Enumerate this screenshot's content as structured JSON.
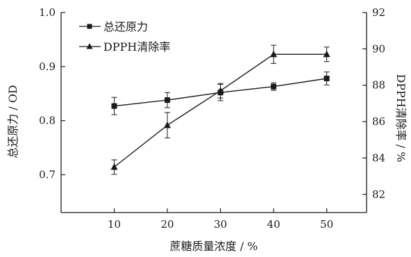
{
  "chart_data": {
    "type": "line",
    "title": "",
    "xlabel": "蔗糖质量浓度 / %",
    "ylabel_left": "总还原力 / OD",
    "ylabel_right": "DPPH清除率 / %",
    "x": [
      10,
      20,
      30,
      40,
      50
    ],
    "x_ticks": [
      "10",
      "20",
      "30",
      "40",
      "50"
    ],
    "xlim": [
      0,
      57.5
    ],
    "ylim_left": [
      0.63,
      1.0
    ],
    "ylim_right": [
      81.0,
      92.0
    ],
    "y_ticks_left": [
      "0.7",
      "0.8",
      "0.9",
      "1.0"
    ],
    "y_tick_values_left": [
      0.7,
      0.8,
      0.9,
      1.0
    ],
    "y_ticks_right": [
      "82",
      "84",
      "86",
      "88",
      "90",
      "92"
    ],
    "y_tick_values_right": [
      82,
      84,
      86,
      88,
      90,
      92
    ],
    "legend_position": "top-left",
    "grid": false,
    "series": [
      {
        "name": "总还原力",
        "axis": "left",
        "marker": "square",
        "values": [
          0.827,
          0.838,
          0.852,
          0.863,
          0.878
        ],
        "errors": [
          0.016,
          0.014,
          0.015,
          0.007,
          0.012
        ],
        "color": "#1a1a1a"
      },
      {
        "name": "DPPH清除率",
        "axis": "right",
        "marker": "triangle",
        "values": [
          83.5,
          85.8,
          87.7,
          89.7,
          89.7
        ],
        "errors": [
          0.4,
          0.7,
          0.4,
          0.5,
          0.4
        ],
        "color": "#1a1a1a"
      }
    ]
  }
}
